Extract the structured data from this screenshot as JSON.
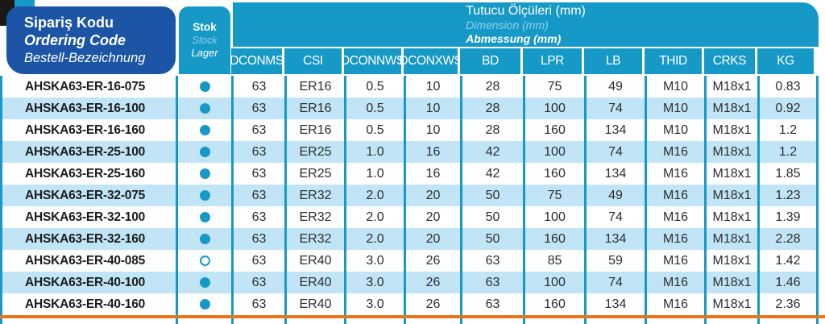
{
  "header": {
    "ordering_code": {
      "tr": "Sipariş Kodu",
      "en": "Ordering Code",
      "de": "Bestell-Bezeichnung"
    },
    "stock": {
      "tr": "Stok",
      "en": "Stock",
      "de": "Lager"
    },
    "dimensions": {
      "tr": "Tutucu Ölçüleri (mm)",
      "en": "Dimension (mm)",
      "de": "Abmessung (mm)"
    }
  },
  "columns": [
    "DCONMS",
    "CSI",
    "DCONNWS",
    "DCONXWS",
    "BD",
    "LPR",
    "LB",
    "THID",
    "CRKS",
    "KG"
  ],
  "rows": [
    {
      "code": "AHSKA63-ER-16-075",
      "stock": "filled",
      "values": [
        "63",
        "ER16",
        "0.5",
        "10",
        "28",
        "75",
        "49",
        "M10",
        "M18x1",
        "0.83"
      ]
    },
    {
      "code": "AHSKA63-ER-16-100",
      "stock": "filled",
      "values": [
        "63",
        "ER16",
        "0.5",
        "10",
        "28",
        "100",
        "74",
        "M10",
        "M18x1",
        "0.92"
      ]
    },
    {
      "code": "AHSKA63-ER-16-160",
      "stock": "filled",
      "values": [
        "63",
        "ER16",
        "0.5",
        "10",
        "28",
        "160",
        "134",
        "M10",
        "M18x1",
        "1.2"
      ]
    },
    {
      "code": "AHSKA63-ER-25-100",
      "stock": "filled",
      "values": [
        "63",
        "ER25",
        "1.0",
        "16",
        "42",
        "100",
        "74",
        "M16",
        "M18x1",
        "1.2"
      ]
    },
    {
      "code": "AHSKA63-ER-25-160",
      "stock": "filled",
      "values": [
        "63",
        "ER25",
        "1.0",
        "16",
        "42",
        "160",
        "134",
        "M16",
        "M18x1",
        "1.85"
      ]
    },
    {
      "code": "AHSKA63-ER-32-075",
      "stock": "filled",
      "values": [
        "63",
        "ER32",
        "2.0",
        "20",
        "50",
        "75",
        "49",
        "M16",
        "M18x1",
        "1.23"
      ]
    },
    {
      "code": "AHSKA63-ER-32-100",
      "stock": "filled",
      "values": [
        "63",
        "ER32",
        "2.0",
        "20",
        "50",
        "100",
        "74",
        "M16",
        "M18x1",
        "1.39"
      ]
    },
    {
      "code": "AHSKA63-ER-32-160",
      "stock": "filled",
      "values": [
        "63",
        "ER32",
        "2.0",
        "20",
        "50",
        "160",
        "134",
        "M16",
        "M18x1",
        "2.28"
      ]
    },
    {
      "code": "AHSKA63-ER-40-085",
      "stock": "open",
      "values": [
        "63",
        "ER40",
        "3.0",
        "26",
        "63",
        "85",
        "59",
        "M16",
        "M18x1",
        "1.42"
      ]
    },
    {
      "code": "AHSKA63-ER-40-100",
      "stock": "filled",
      "values": [
        "63",
        "ER40",
        "3.0",
        "26",
        "63",
        "100",
        "74",
        "M16",
        "M18x1",
        "1.46"
      ]
    },
    {
      "code": "AHSKA63-ER-40-160",
      "stock": "filled",
      "values": [
        "63",
        "ER40",
        "3.0",
        "26",
        "63",
        "160",
        "134",
        "M16",
        "M18x1",
        "2.36"
      ]
    }
  ],
  "colors": {
    "teal": "#1799c7",
    "dark_blue": "#1c55a5",
    "row_alt": "#c1e5f6",
    "divider_orange": "#e8761b",
    "subtitle_light": "#8ed0e8"
  }
}
